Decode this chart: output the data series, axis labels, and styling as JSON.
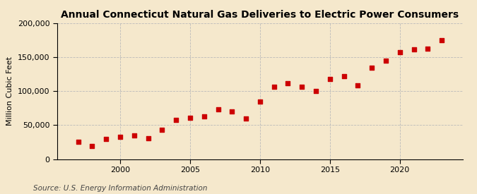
{
  "title": "Annual Connecticut Natural Gas Deliveries to Electric Power Consumers",
  "ylabel": "Million Cubic Feet",
  "source": "Source: U.S. Energy Information Administration",
  "background_color": "#f5e8cc",
  "plot_background_color": "#f5e8cc",
  "marker_color": "#cc0000",
  "years": [
    1997,
    1998,
    1999,
    2000,
    2001,
    2002,
    2003,
    2004,
    2005,
    2006,
    2007,
    2008,
    2009,
    2010,
    2011,
    2012,
    2013,
    2014,
    2015,
    2016,
    2017,
    2018,
    2019,
    2020,
    2021,
    2022,
    2023
  ],
  "values": [
    25000,
    19000,
    30000,
    33000,
    35000,
    31000,
    43000,
    58000,
    61000,
    63000,
    73000,
    70000,
    60000,
    85000,
    107000,
    112000,
    107000,
    100000,
    118000,
    122000,
    109000,
    135000,
    145000,
    157000,
    162000,
    163000,
    175000
  ],
  "xlim": [
    1995.5,
    2024.5
  ],
  "ylim": [
    0,
    200000
  ],
  "yticks": [
    0,
    50000,
    100000,
    150000,
    200000
  ],
  "xticks": [
    2000,
    2005,
    2010,
    2015,
    2020
  ],
  "grid_color": "#bbbbbb",
  "title_fontsize": 10,
  "label_fontsize": 8,
  "tick_fontsize": 8,
  "source_fontsize": 7.5,
  "marker_size": 20
}
